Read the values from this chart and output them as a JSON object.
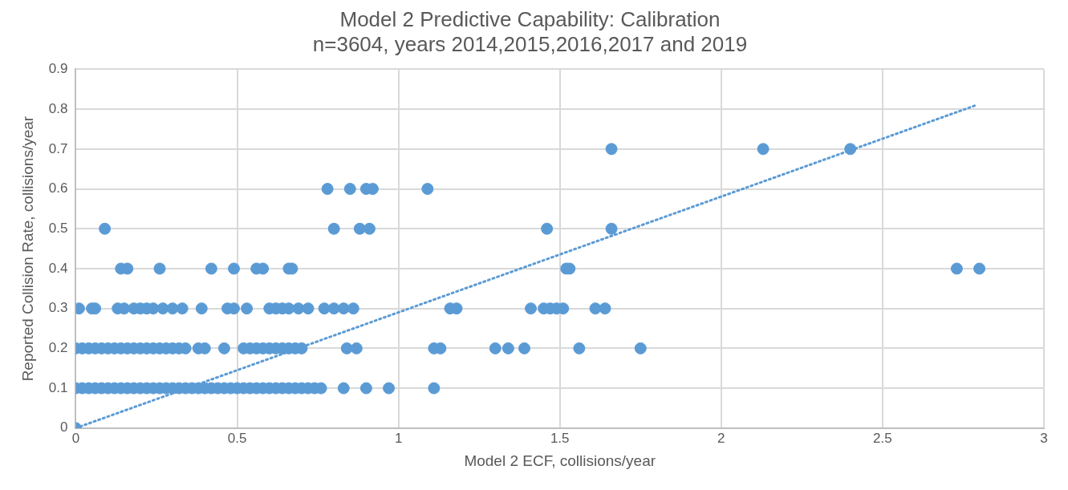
{
  "chart_data": {
    "type": "scatter",
    "title": "Model 2 Predictive Capability: Calibration",
    "subtitle": "n=3604, years 2014,2015,2016,2017 and 2019",
    "xlabel": "Model 2 ECF, collisions/year",
    "ylabel": "Reported Collision Rate, collisions/year",
    "xlim": [
      0,
      3
    ],
    "xticks": [
      0,
      0.5,
      1,
      1.5,
      2,
      2.5,
      3
    ],
    "ylim": [
      0,
      0.9
    ],
    "yticks": [
      0,
      0.1,
      0.2,
      0.3,
      0.4,
      0.5,
      0.6,
      0.7,
      0.8,
      0.9
    ],
    "grid": true,
    "legend": false,
    "marker": "circle",
    "series": [
      {
        "type": "scatter",
        "color": "#5b9bd5",
        "x": [
          0,
          0,
          0.02,
          0.04,
          0.06,
          0.08,
          0.1,
          0.12,
          0.14,
          0.16,
          0.18,
          0.2,
          0.22,
          0.24,
          0.26,
          0.28,
          0.3,
          0.32,
          0.34,
          0.36,
          0.38,
          0.4,
          0.42,
          0.44,
          0.46,
          0.48,
          0.5,
          0.52,
          0.54,
          0.56,
          0.58,
          0.6,
          0.62,
          0.64,
          0.66,
          0.68,
          0.7,
          0.72,
          0.74,
          0.76,
          0.83,
          0.9,
          0.97,
          1.11,
          0,
          0.02,
          0.04,
          0.06,
          0.08,
          0.1,
          0.12,
          0.14,
          0.16,
          0.18,
          0.2,
          0.22,
          0.24,
          0.26,
          0.28,
          0.3,
          0.32,
          0.34,
          0.38,
          0.4,
          0.46,
          0.52,
          0.54,
          0.56,
          0.58,
          0.6,
          0.62,
          0.64,
          0.66,
          0.68,
          0.7,
          0.84,
          0.87,
          1.11,
          1.13,
          1.3,
          1.34,
          1.39,
          1.56,
          1.75,
          0.01,
          0.05,
          0.06,
          0.13,
          0.15,
          0.18,
          0.2,
          0.22,
          0.24,
          0.27,
          0.3,
          0.33,
          0.39,
          0.47,
          0.49,
          0.53,
          0.6,
          0.62,
          0.64,
          0.66,
          0.69,
          0.72,
          0.77,
          0.8,
          0.83,
          0.86,
          1.16,
          1.18,
          1.41,
          1.45,
          1.47,
          1.49,
          1.51,
          1.61,
          1.64,
          0.14,
          0.16,
          0.26,
          0.42,
          0.49,
          0.56,
          0.58,
          0.66,
          0.67,
          1.52,
          1.53,
          2.73,
          2.8,
          0.09,
          0.8,
          0.88,
          0.91,
          1.46,
          1.66,
          0.78,
          0.85,
          0.9,
          0.92,
          1.09,
          1.66,
          2.13,
          2.4
        ],
        "values": [
          0,
          0.1,
          0.1,
          0.1,
          0.1,
          0.1,
          0.1,
          0.1,
          0.1,
          0.1,
          0.1,
          0.1,
          0.1,
          0.1,
          0.1,
          0.1,
          0.1,
          0.1,
          0.1,
          0.1,
          0.1,
          0.1,
          0.1,
          0.1,
          0.1,
          0.1,
          0.1,
          0.1,
          0.1,
          0.1,
          0.1,
          0.1,
          0.1,
          0.1,
          0.1,
          0.1,
          0.1,
          0.1,
          0.1,
          0.1,
          0.1,
          0.1,
          0.1,
          0.1,
          0.2,
          0.2,
          0.2,
          0.2,
          0.2,
          0.2,
          0.2,
          0.2,
          0.2,
          0.2,
          0.2,
          0.2,
          0.2,
          0.2,
          0.2,
          0.2,
          0.2,
          0.2,
          0.2,
          0.2,
          0.2,
          0.2,
          0.2,
          0.2,
          0.2,
          0.2,
          0.2,
          0.2,
          0.2,
          0.2,
          0.2,
          0.2,
          0.2,
          0.2,
          0.2,
          0.2,
          0.2,
          0.2,
          0.2,
          0.2,
          0.3,
          0.3,
          0.3,
          0.3,
          0.3,
          0.3,
          0.3,
          0.3,
          0.3,
          0.3,
          0.3,
          0.3,
          0.3,
          0.3,
          0.3,
          0.3,
          0.3,
          0.3,
          0.3,
          0.3,
          0.3,
          0.3,
          0.3,
          0.3,
          0.3,
          0.3,
          0.3,
          0.3,
          0.3,
          0.3,
          0.3,
          0.3,
          0.3,
          0.3,
          0.3,
          0.4,
          0.4,
          0.4,
          0.4,
          0.4,
          0.4,
          0.4,
          0.4,
          0.4,
          0.4,
          0.4,
          0.4,
          0.4,
          0.5,
          0.5,
          0.5,
          0.5,
          0.5,
          0.5,
          0.6,
          0.6,
          0.6,
          0.6,
          0.6,
          0.7,
          0.7,
          0.7
        ]
      },
      {
        "type": "line",
        "color": "#5b9bd5",
        "line_style": "dotted",
        "marker": "none",
        "x": [
          0,
          2.79
        ],
        "values": [
          0,
          0.81
        ]
      }
    ]
  }
}
